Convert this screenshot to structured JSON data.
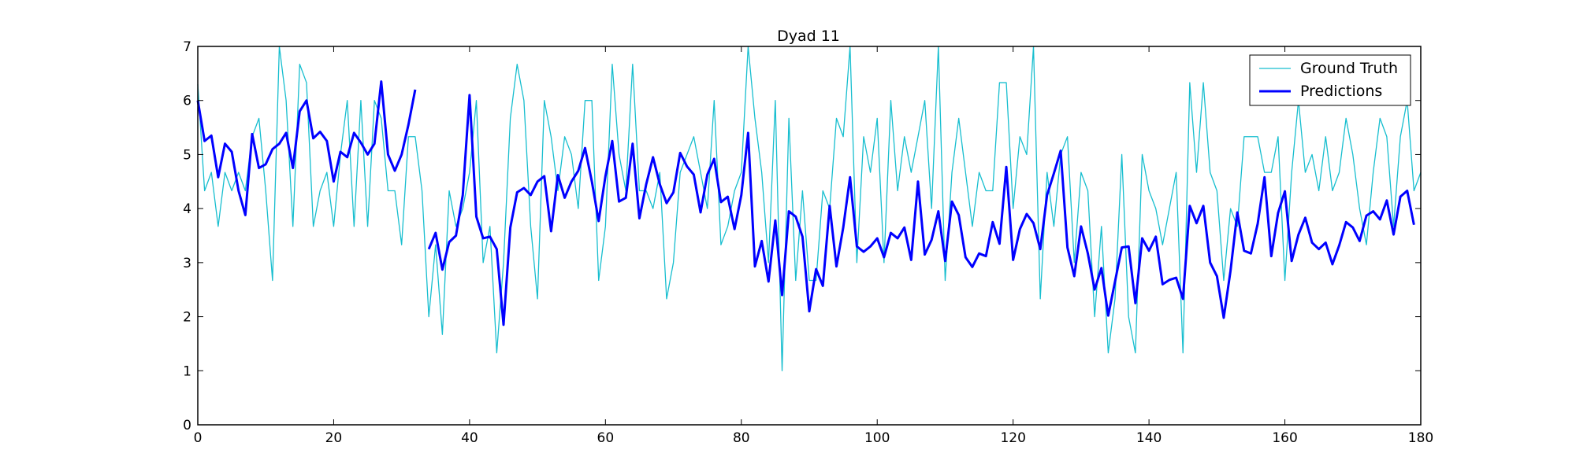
{
  "chart_data": {
    "type": "line",
    "title": "Dyad 11",
    "xlabel": "",
    "ylabel": "",
    "xlim": [
      0,
      180
    ],
    "ylim": [
      0,
      7
    ],
    "xticks": [
      0,
      20,
      40,
      60,
      80,
      100,
      120,
      140,
      160,
      180
    ],
    "yticks": [
      0,
      1,
      2,
      3,
      4,
      5,
      6,
      7
    ],
    "grid": false,
    "legend_position": "top-right",
    "series": [
      {
        "name": "Ground Truth",
        "color": "#17becf",
        "style": "thin",
        "values": [
          6.3,
          4.33,
          4.67,
          3.67,
          4.67,
          4.33,
          4.67,
          4.33,
          5.33,
          5.67,
          4.33,
          2.67,
          7.0,
          6.0,
          3.67,
          6.67,
          6.33,
          3.67,
          4.33,
          4.67,
          3.67,
          5.0,
          6.0,
          3.67,
          6.0,
          3.67,
          6.0,
          5.67,
          4.33,
          4.33,
          3.33,
          5.33,
          5.33,
          4.33,
          2.0,
          3.33,
          1.67,
          4.33,
          3.67,
          4.0,
          4.67,
          6.0,
          3.0,
          3.67,
          1.33,
          3.0,
          5.67,
          6.67,
          6.0,
          3.67,
          2.33,
          6.0,
          5.33,
          4.33,
          5.33,
          5.0,
          4.0,
          6.0,
          6.0,
          2.67,
          3.67,
          6.67,
          5.0,
          4.33,
          6.67,
          4.33,
          4.33,
          4.0,
          4.67,
          2.33,
          3.0,
          4.67,
          5.0,
          5.33,
          4.67,
          4.0,
          6.0,
          3.33,
          3.67,
          4.33,
          4.67,
          7.0,
          5.67,
          4.67,
          3.0,
          6.0,
          1.0,
          5.67,
          2.67,
          4.33,
          2.67,
          2.67,
          4.33,
          4.0,
          5.67,
          5.33,
          7.0,
          3.0,
          5.33,
          4.67,
          5.67,
          3.0,
          6.0,
          4.33,
          5.33,
          4.67,
          5.33,
          6.0,
          4.0,
          7.0,
          2.67,
          4.67,
          5.67,
          4.67,
          3.67,
          4.67,
          4.33,
          4.33,
          6.33,
          6.33,
          4.0,
          5.33,
          5.0,
          7.0,
          2.33,
          4.67,
          3.67,
          5.0,
          5.33,
          3.0,
          4.67,
          4.33,
          2.0,
          3.67,
          1.33,
          2.33,
          5.0,
          2.0,
          1.33,
          5.0,
          4.33,
          4.0,
          3.33,
          4.0,
          4.67,
          1.33,
          6.33,
          4.67,
          6.33,
          4.67,
          4.33,
          2.67,
          4.0,
          3.67,
          5.33,
          5.33,
          5.33,
          4.67,
          4.67,
          5.33,
          2.67,
          4.67,
          6.0,
          4.67,
          5.0,
          4.33,
          5.33,
          4.33,
          4.67,
          5.67,
          5.0,
          4.0,
          3.33,
          4.67,
          5.67,
          5.33,
          3.67,
          5.33,
          6.0,
          4.33,
          4.67
        ]
      },
      {
        "name": "Predictions",
        "color": "#0000ff",
        "style": "thick",
        "values": [
          6.0,
          5.25,
          5.35,
          4.58,
          5.2,
          5.05,
          4.33,
          3.88,
          5.38,
          4.75,
          4.82,
          5.1,
          5.2,
          5.4,
          4.75,
          5.8,
          6.0,
          5.3,
          5.42,
          5.25,
          4.5,
          5.05,
          4.95,
          5.4,
          5.22,
          5.0,
          5.2,
          6.35,
          5.0,
          4.7,
          5.0,
          5.55,
          6.2,
          null,
          3.25,
          3.55,
          2.87,
          3.38,
          3.5,
          4.25,
          6.1,
          3.85,
          3.45,
          3.48,
          3.25,
          1.85,
          3.65,
          4.3,
          4.38,
          4.25,
          4.5,
          4.6,
          3.58,
          4.62,
          4.2,
          4.5,
          4.7,
          5.12,
          4.5,
          3.77,
          4.6,
          5.25,
          4.13,
          4.2,
          5.2,
          3.82,
          4.45,
          4.95,
          4.45,
          4.1,
          4.3,
          5.03,
          4.78,
          4.63,
          3.93,
          4.63,
          4.92,
          4.12,
          4.22,
          3.62,
          4.25,
          5.4,
          2.93,
          3.4,
          2.65,
          3.78,
          2.4,
          3.95,
          3.85,
          3.48,
          2.1,
          2.88,
          2.57,
          4.05,
          2.93,
          3.65,
          4.58,
          3.3,
          3.2,
          3.3,
          3.45,
          3.1,
          3.55,
          3.45,
          3.65,
          3.05,
          4.5,
          3.15,
          3.42,
          3.95,
          3.03,
          4.13,
          3.88,
          3.1,
          2.92,
          3.17,
          3.12,
          3.75,
          3.35,
          4.77,
          3.05,
          3.62,
          3.9,
          3.73,
          3.25,
          4.25,
          4.65,
          5.07,
          3.28,
          2.75,
          3.67,
          3.17,
          2.5,
          2.9,
          2.02,
          2.65,
          3.28,
          3.3,
          2.25,
          3.45,
          3.22,
          3.48,
          2.6,
          2.68,
          2.72,
          2.33,
          4.05,
          3.73,
          4.05,
          3.0,
          2.75,
          1.98,
          2.85,
          3.93,
          3.22,
          3.17,
          3.72,
          4.58,
          3.12,
          3.92,
          4.32,
          3.03,
          3.52,
          3.83,
          3.37,
          3.25,
          3.37,
          2.97,
          3.32,
          3.75,
          3.65,
          3.4,
          3.87,
          3.95,
          3.8,
          4.15,
          3.52,
          4.22,
          4.33,
          3.7
        ]
      }
    ]
  }
}
